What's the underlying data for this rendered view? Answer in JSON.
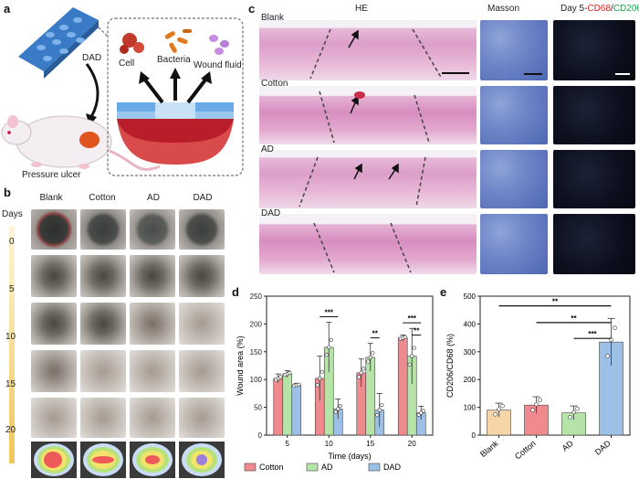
{
  "panel_labels": {
    "a": "a",
    "b": "b",
    "c": "c",
    "d": "d",
    "e": "e"
  },
  "panel_a": {
    "dad_label": "DAD",
    "pressure_ulcer_label": "Pressure ulcer",
    "cell_label": "Cell",
    "bacteria_label": "Bacteria",
    "wound_fluid_label": "Wound fluid"
  },
  "panel_b": {
    "columns": [
      "Blank",
      "Cotton",
      "AD",
      "DAD"
    ],
    "days_title": "Days",
    "days": [
      "0",
      "5",
      "10",
      "15",
      "20"
    ]
  },
  "panel_c": {
    "col_he": "HE",
    "col_masson": "Masson",
    "col_day5_prefix": "Day 5-",
    "col_cd68": "CD68",
    "col_slash": "/",
    "col_cd206": "CD206",
    "rows": [
      "Blank",
      "Cotton",
      "AD",
      "DAD"
    ]
  },
  "colors": {
    "cotton": "#ef8a8f",
    "ad": "#b5e3a8",
    "dad": "#9dc0e6",
    "cd68": "#e02020",
    "cd206": "#1ca04a"
  },
  "chart_data": [
    {
      "type": "bar",
      "panel": "d",
      "xlabel": "Time (days)",
      "ylabel": "Wound area (%)",
      "categories": [
        "5",
        "10",
        "15",
        "20"
      ],
      "ylim": [
        0,
        250
      ],
      "yticks": [
        "0",
        "50",
        "100",
        "150",
        "200",
        "250"
      ],
      "series": [
        {
          "name": "Cotton",
          "values": [
            102,
            102,
            112,
            175
          ],
          "err": [
            8,
            40,
            25,
            5
          ]
        },
        {
          "name": "AD",
          "values": [
            110,
            158,
            140,
            142
          ],
          "err": [
            6,
            45,
            25,
            50
          ]
        },
        {
          "name": "DAD",
          "values": [
            90,
            47,
            45,
            40
          ],
          "err": [
            3,
            18,
            30,
            12
          ]
        }
      ],
      "significance": [
        {
          "category": "10",
          "label": "***",
          "from": "Cotton",
          "to": "DAD"
        },
        {
          "category": "15",
          "label": "**",
          "from": "AD",
          "to": "DAD"
        },
        {
          "category": "20",
          "label": "***",
          "from": "Cotton",
          "to": "DAD"
        },
        {
          "category": "20",
          "label": "**",
          "from": "AD",
          "to": "DAD"
        }
      ],
      "legend": [
        "Cotton",
        "AD",
        "DAD"
      ]
    },
    {
      "type": "bar",
      "panel": "e",
      "xlabel": "",
      "ylabel": "CD206/CD68 (%)",
      "categories": [
        "Blank",
        "Cotton",
        "AD",
        "DAD"
      ],
      "values": [
        90,
        108,
        80,
        335
      ],
      "err": [
        25,
        30,
        25,
        85
      ],
      "ylim": [
        0,
        500
      ],
      "yticks": [
        "0",
        "100",
        "200",
        "300",
        "400",
        "500"
      ],
      "significance": [
        {
          "label": "**",
          "from": "Blank",
          "to": "DAD"
        },
        {
          "label": "**",
          "from": "Cotton",
          "to": "DAD"
        },
        {
          "label": "***",
          "from": "AD",
          "to": "DAD"
        }
      ]
    }
  ]
}
